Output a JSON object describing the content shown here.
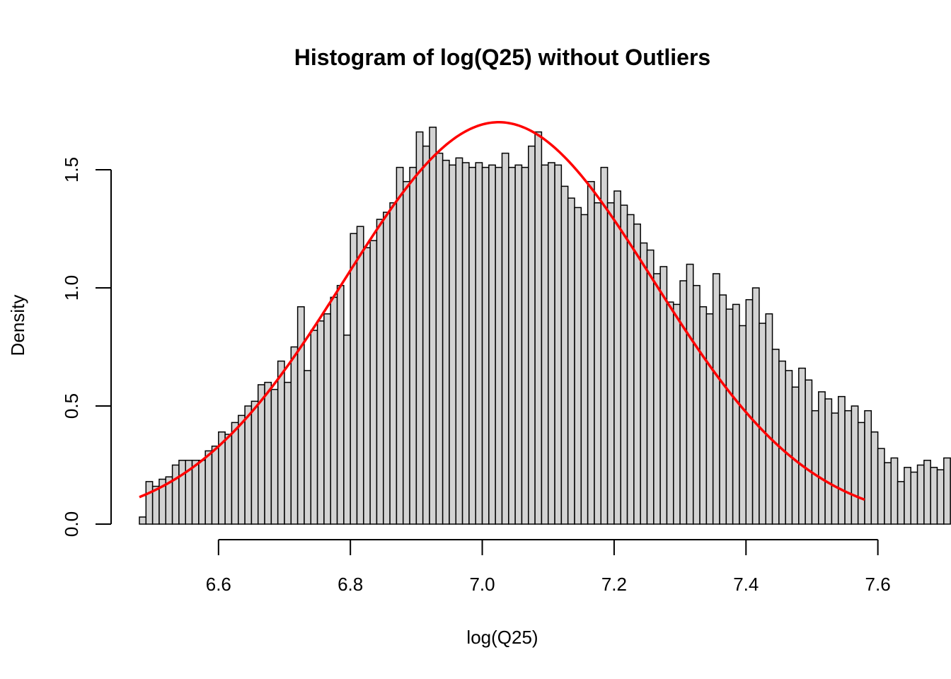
{
  "chart_data": {
    "type": "bar",
    "title": "Histogram of log(Q25) without Outliers",
    "xlabel": "log(Q25)",
    "ylabel": "Density",
    "xlim": [
      6.48,
      7.58
    ],
    "ylim": [
      0,
      1.7
    ],
    "x_ticks": [
      6.6,
      6.8,
      7.0,
      7.2,
      7.4,
      7.6
    ],
    "x_tick_labels": [
      "6.6",
      "6.8",
      "7.0",
      "7.2",
      "7.4",
      "7.6"
    ],
    "y_ticks": [
      0,
      0.5,
      1.0,
      1.5
    ],
    "y_tick_labels": [
      "0.0",
      "0.5",
      "1.0",
      "1.5"
    ],
    "bin_start": 6.48,
    "bin_width": 0.01,
    "densities": [
      0.03,
      0.18,
      0.16,
      0.19,
      0.2,
      0.25,
      0.27,
      0.27,
      0.27,
      0.27,
      0.31,
      0.33,
      0.39,
      0.38,
      0.43,
      0.46,
      0.5,
      0.52,
      0.59,
      0.6,
      0.57,
      0.69,
      0.6,
      0.75,
      0.92,
      0.65,
      0.82,
      0.86,
      0.89,
      0.96,
      1.01,
      0.8,
      1.23,
      1.26,
      1.17,
      1.2,
      1.29,
      1.32,
      1.36,
      1.51,
      1.45,
      1.51,
      1.66,
      1.6,
      1.68,
      1.57,
      1.54,
      1.52,
      1.55,
      1.53,
      1.51,
      1.53,
      1.51,
      1.52,
      1.51,
      1.57,
      1.51,
      1.52,
      1.51,
      1.6,
      1.66,
      1.52,
      1.53,
      1.52,
      1.43,
      1.38,
      1.34,
      1.31,
      1.45,
      1.36,
      1.51,
      1.36,
      1.41,
      1.35,
      1.31,
      1.27,
      1.19,
      1.16,
      1.06,
      1.09,
      0.94,
      0.93,
      1.03,
      1.1,
      1.01,
      0.92,
      0.89,
      1.06,
      0.97,
      0.91,
      0.93,
      0.84,
      0.95,
      1.0,
      0.85,
      0.89,
      0.74,
      0.69,
      0.65,
      0.58,
      0.66,
      0.61,
      0.48,
      0.56,
      0.53,
      0.47,
      0.54,
      0.48,
      0.5,
      0.43,
      0.48,
      0.39,
      0.32,
      0.26,
      0.28,
      0.18,
      0.24,
      0.22,
      0.25,
      0.27,
      0.24,
      0.23,
      0.28
    ],
    "density_curve": {
      "type": "normal",
      "mean": 7.025,
      "sd": 0.2345,
      "color": "#ff0000"
    },
    "bar_fill": "#d3d3d3",
    "grid": false,
    "legend": "none"
  }
}
